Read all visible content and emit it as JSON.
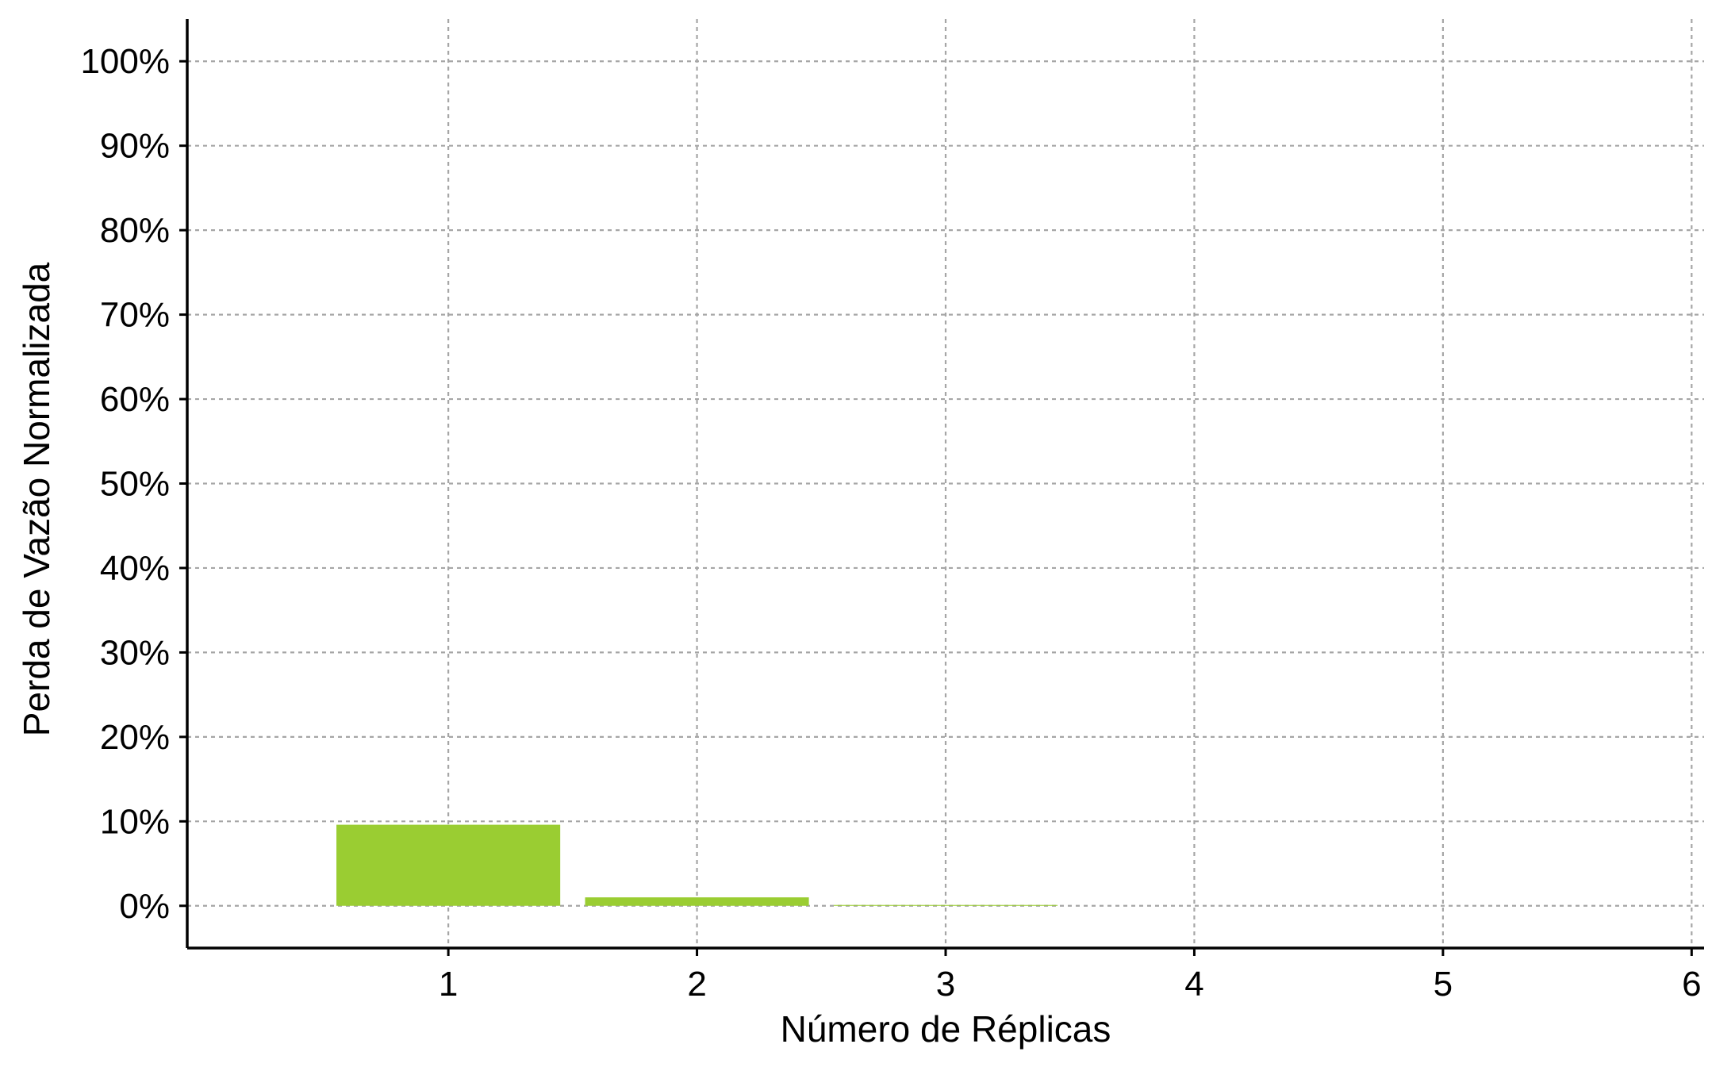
{
  "chart_data": {
    "type": "bar",
    "xlabel": "Número de Réplicas",
    "ylabel": "Perda de Vazão Normalizada",
    "x": [
      1,
      2,
      3
    ],
    "values": [
      9.6,
      1.0,
      0.1
    ],
    "xlim": [
      -0.05,
      6.05
    ],
    "ylim": [
      -5,
      105
    ],
    "xticks": [
      1,
      2,
      3,
      4,
      5,
      6
    ],
    "xtick_labels": [
      "1",
      "2",
      "3",
      "4",
      "5",
      "6"
    ],
    "yticks": [
      0,
      10,
      20,
      30,
      40,
      50,
      60,
      70,
      80,
      90,
      100
    ],
    "ytick_labels": [
      "0%",
      "10%",
      "20%",
      "30%",
      "40%",
      "50%",
      "60%",
      "70%",
      "80%",
      "90%",
      "100%"
    ],
    "bar_color": "#9acd32",
    "grid": true,
    "legend": "none"
  }
}
